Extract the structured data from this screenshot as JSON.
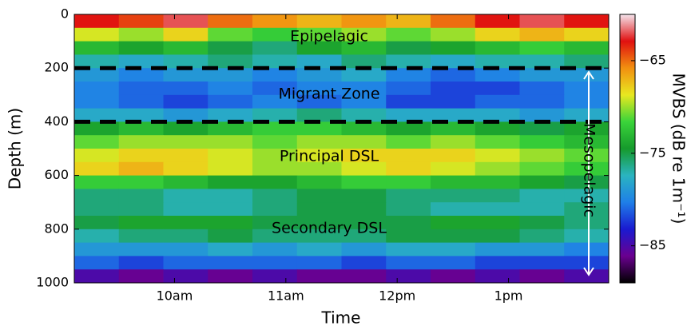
{
  "chart_data": {
    "type": "heatmap",
    "xlabel": "Time",
    "ylabel": "Depth (m)",
    "colorbar_label": "MVBS (dB re 1m⁻¹)",
    "xlim": [
      9.1,
      13.9
    ],
    "xticks": [
      {
        "value": 10,
        "label": "10am"
      },
      {
        "value": 11,
        "label": "11am"
      },
      {
        "value": 12,
        "label": "12pm"
      },
      {
        "value": 13,
        "label": "1pm"
      }
    ],
    "ylim": [
      0,
      1000
    ],
    "yticks": [
      0,
      200,
      400,
      600,
      800,
      1000
    ],
    "y_inverted": true,
    "clim": [
      -89,
      -60
    ],
    "cticks": [
      {
        "value": -65,
        "label": "−65"
      },
      {
        "value": -75,
        "label": "−75"
      },
      {
        "value": -85,
        "label": "−85"
      }
    ],
    "colormap": [
      "#000000",
      "#6a0090",
      "#1a1ad0",
      "#1f7fe8",
      "#2ab4c0",
      "#169a2c",
      "#3ad43a",
      "#e8e820",
      "#f29010",
      "#e01010",
      "#f4e4ec"
    ],
    "x_edges": [
      9.1,
      9.5,
      9.9,
      10.3,
      10.7,
      11.1,
      11.5,
      11.9,
      12.3,
      12.7,
      13.1,
      13.5,
      13.9
    ],
    "y_edges": [
      0,
      50,
      100,
      150,
      200,
      250,
      300,
      350,
      400,
      450,
      500,
      550,
      600,
      650,
      700,
      750,
      800,
      850,
      900,
      950,
      1000
    ],
    "z": [
      [
        -63,
        -64,
        -62,
        -65,
        -66,
        -67,
        -66,
        -67,
        -65,
        -63,
        -62,
        -63
      ],
      [
        -69,
        -70,
        -68,
        -71,
        -72,
        -71,
        -70,
        -71,
        -70,
        -68,
        -67,
        -68
      ],
      [
        -73,
        -74,
        -73,
        -75,
        -76,
        -74,
        -73,
        -75,
        -74,
        -73,
        -72,
        -73
      ],
      [
        -77,
        -78,
        -77,
        -76,
        -77,
        -78,
        -76,
        -77,
        -78,
        -77,
        -77,
        -76
      ],
      [
        -79,
        -80,
        -79,
        -79,
        -80,
        -79,
        -78,
        -80,
        -81,
        -80,
        -79,
        -79
      ],
      [
        -80,
        -81,
        -81,
        -80,
        -81,
        -80,
        -80,
        -81,
        -82,
        -82,
        -81,
        -80
      ],
      [
        -80,
        -81,
        -82,
        -81,
        -80,
        -81,
        -80,
        -82,
        -82,
        -81,
        -81,
        -80
      ],
      [
        -78,
        -78,
        -79,
        -78,
        -77,
        -76,
        -77,
        -78,
        -78,
        -78,
        -79,
        -78
      ],
      [
        -74,
        -73,
        -74,
        -73,
        -72,
        -72,
        -73,
        -74,
        -73,
        -74,
        -75,
        -74
      ],
      [
        -71,
        -70,
        -70,
        -70,
        -71,
        -70,
        -70,
        -71,
        -70,
        -71,
        -72,
        -73
      ],
      [
        -69,
        -68,
        -68,
        -69,
        -70,
        -69,
        -68,
        -68,
        -68,
        -69,
        -70,
        -71
      ],
      [
        -68,
        -67,
        -68,
        -69,
        -70,
        -70,
        -69,
        -68,
        -69,
        -70,
        -71,
        -72
      ],
      [
        -72,
        -72,
        -73,
        -74,
        -74,
        -73,
        -72,
        -72,
        -73,
        -73,
        -74,
        -75
      ],
      [
        -76,
        -76,
        -77,
        -77,
        -76,
        -75,
        -75,
        -76,
        -76,
        -76,
        -77,
        -77
      ],
      [
        -76,
        -76,
        -77,
        -77,
        -76,
        -75,
        -75,
        -76,
        -77,
        -77,
        -77,
        -76
      ],
      [
        -75,
        -74,
        -74,
        -74,
        -75,
        -75,
        -75,
        -75,
        -74,
        -74,
        -75,
        -76
      ],
      [
        -77,
        -76,
        -76,
        -75,
        -76,
        -76,
        -76,
        -75,
        -75,
        -75,
        -76,
        -77
      ],
      [
        -79,
        -79,
        -79,
        -78,
        -79,
        -78,
        -79,
        -78,
        -78,
        -79,
        -79,
        -80
      ],
      [
        -81,
        -82,
        -81,
        -81,
        -81,
        -81,
        -82,
        -81,
        -81,
        -82,
        -82,
        -82
      ],
      [
        -85,
        -86,
        -85,
        -86,
        -85,
        -86,
        -86,
        -85,
        -86,
        -85,
        -86,
        -85
      ]
    ],
    "boundaries": [
      200,
      400
    ],
    "annotations": [
      "Epipelagic",
      "Migrant Zone",
      "Principal DSL",
      "Secondary DSL",
      "Mesopelagic"
    ]
  }
}
